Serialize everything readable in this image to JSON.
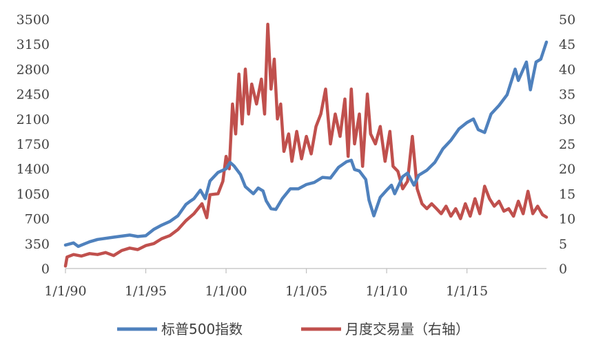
{
  "chart_data": {
    "type": "line",
    "title": "",
    "left_axis": {
      "min": 0,
      "max": 3500,
      "ticks": [
        0,
        350,
        700,
        1050,
        1400,
        1750,
        2100,
        2450,
        2800,
        3150,
        3500
      ]
    },
    "right_axis": {
      "min": 0,
      "max": 50,
      "ticks": [
        0,
        5,
        10,
        15,
        20,
        25,
        30,
        35,
        40,
        45,
        50
      ]
    },
    "x_axis": {
      "type": "date",
      "range": [
        "1/1/90",
        "12/1/19"
      ],
      "ticks": [
        {
          "label": "1/1/90",
          "year": 1990
        },
        {
          "label": "1/1/95",
          "year": 1995
        },
        {
          "label": "1/1/00",
          "year": 2000
        },
        {
          "label": "1/1/05",
          "year": 2005
        },
        {
          "label": "1/1/10",
          "year": 2010
        },
        {
          "label": "1/1/15",
          "year": 2015
        }
      ]
    },
    "grid": false,
    "legend_position": "bottom",
    "series": [
      {
        "name": "标普500指数",
        "axis": "left",
        "color": "#4f81bd",
        "points": [
          [
            1990.0,
            330
          ],
          [
            1990.5,
            360
          ],
          [
            1990.8,
            310
          ],
          [
            1991.0,
            330
          ],
          [
            1991.5,
            375
          ],
          [
            1992.0,
            408
          ],
          [
            1993.0,
            440
          ],
          [
            1994.0,
            470
          ],
          [
            1994.5,
            450
          ],
          [
            1995.0,
            460
          ],
          [
            1995.5,
            550
          ],
          [
            1996.0,
            610
          ],
          [
            1996.5,
            660
          ],
          [
            1997.0,
            740
          ],
          [
            1997.5,
            900
          ],
          [
            1997.8,
            950
          ],
          [
            1998.0,
            980
          ],
          [
            1998.4,
            1100
          ],
          [
            1998.7,
            980
          ],
          [
            1999.0,
            1230
          ],
          [
            1999.5,
            1350
          ],
          [
            2000.0,
            1400
          ],
          [
            2000.25,
            1490
          ],
          [
            2000.5,
            1440
          ],
          [
            2000.9,
            1320
          ],
          [
            2001.2,
            1150
          ],
          [
            2001.7,
            1050
          ],
          [
            2002.0,
            1130
          ],
          [
            2002.3,
            1090
          ],
          [
            2002.5,
            950
          ],
          [
            2002.8,
            840
          ],
          [
            2003.1,
            830
          ],
          [
            2003.5,
            980
          ],
          [
            2004.0,
            1120
          ],
          [
            2004.5,
            1120
          ],
          [
            2005.0,
            1180
          ],
          [
            2005.5,
            1210
          ],
          [
            2006.0,
            1280
          ],
          [
            2006.5,
            1270
          ],
          [
            2007.0,
            1420
          ],
          [
            2007.5,
            1500
          ],
          [
            2007.8,
            1520
          ],
          [
            2008.0,
            1390
          ],
          [
            2008.3,
            1370
          ],
          [
            2008.7,
            1250
          ],
          [
            2008.9,
            960
          ],
          [
            2009.2,
            740
          ],
          [
            2009.6,
            1000
          ],
          [
            2010.0,
            1100
          ],
          [
            2010.3,
            1170
          ],
          [
            2010.5,
            1050
          ],
          [
            2011.0,
            1290
          ],
          [
            2011.3,
            1340
          ],
          [
            2011.7,
            1170
          ],
          [
            2012.0,
            1310
          ],
          [
            2012.5,
            1380
          ],
          [
            2013.0,
            1490
          ],
          [
            2013.5,
            1680
          ],
          [
            2014.0,
            1800
          ],
          [
            2014.5,
            1960
          ],
          [
            2015.0,
            2050
          ],
          [
            2015.4,
            2100
          ],
          [
            2015.7,
            1950
          ],
          [
            2016.1,
            1910
          ],
          [
            2016.5,
            2170
          ],
          [
            2017.0,
            2290
          ],
          [
            2017.5,
            2440
          ],
          [
            2018.0,
            2800
          ],
          [
            2018.2,
            2640
          ],
          [
            2018.7,
            2900
          ],
          [
            2018.95,
            2510
          ],
          [
            2019.3,
            2900
          ],
          [
            2019.6,
            2940
          ],
          [
            2019.95,
            3180
          ]
        ]
      },
      {
        "name": "月度交易量（右轴）",
        "axis": "right",
        "color": "#c0504d",
        "points": [
          [
            1990.0,
            0.5
          ],
          [
            1990.1,
            2.3
          ],
          [
            1990.5,
            2.8
          ],
          [
            1991.0,
            2.5
          ],
          [
            1991.5,
            3.0
          ],
          [
            1992.0,
            2.8
          ],
          [
            1992.5,
            3.2
          ],
          [
            1993.0,
            2.6
          ],
          [
            1993.5,
            3.6
          ],
          [
            1994.0,
            4.1
          ],
          [
            1994.5,
            3.8
          ],
          [
            1995.0,
            4.6
          ],
          [
            1995.5,
            5.0
          ],
          [
            1996.0,
            6.0
          ],
          [
            1996.5,
            6.6
          ],
          [
            1997.0,
            7.8
          ],
          [
            1997.5,
            9.6
          ],
          [
            1998.0,
            11.0
          ],
          [
            1998.5,
            13.0
          ],
          [
            1998.8,
            10.2
          ],
          [
            1999.0,
            14.8
          ],
          [
            1999.5,
            15.0
          ],
          [
            1999.8,
            17.5
          ],
          [
            2000.0,
            22.5
          ],
          [
            2000.2,
            20.0
          ],
          [
            2000.4,
            33.0
          ],
          [
            2000.6,
            27.0
          ],
          [
            2000.8,
            39.0
          ],
          [
            2001.0,
            29.0
          ],
          [
            2001.2,
            40.0
          ],
          [
            2001.4,
            31.0
          ],
          [
            2001.6,
            37.0
          ],
          [
            2001.9,
            33.0
          ],
          [
            2002.2,
            38.0
          ],
          [
            2002.4,
            31.0
          ],
          [
            2002.6,
            49.0
          ],
          [
            2002.8,
            36.0
          ],
          [
            2003.0,
            42.0
          ],
          [
            2003.2,
            30.0
          ],
          [
            2003.4,
            33.0
          ],
          [
            2003.6,
            23.5
          ],
          [
            2003.9,
            27.0
          ],
          [
            2004.1,
            21.5
          ],
          [
            2004.4,
            27.5
          ],
          [
            2004.7,
            22.0
          ],
          [
            2005.0,
            26.5
          ],
          [
            2005.3,
            23.0
          ],
          [
            2005.6,
            28.5
          ],
          [
            2005.9,
            31.0
          ],
          [
            2006.2,
            36.0
          ],
          [
            2006.5,
            25.0
          ],
          [
            2006.8,
            31.0
          ],
          [
            2007.1,
            26.5
          ],
          [
            2007.4,
            34.0
          ],
          [
            2007.6,
            22.5
          ],
          [
            2007.8,
            36.0
          ],
          [
            2008.0,
            25.0
          ],
          [
            2008.3,
            31.0
          ],
          [
            2008.5,
            20.5
          ],
          [
            2008.8,
            35.0
          ],
          [
            2009.0,
            27.0
          ],
          [
            2009.3,
            25.0
          ],
          [
            2009.6,
            28.5
          ],
          [
            2009.9,
            21.5
          ],
          [
            2010.2,
            27.5
          ],
          [
            2010.4,
            20.5
          ],
          [
            2010.7,
            19.5
          ],
          [
            2011.0,
            16.0
          ],
          [
            2011.3,
            17.5
          ],
          [
            2011.6,
            26.5
          ],
          [
            2011.9,
            16.0
          ],
          [
            2012.2,
            13.0
          ],
          [
            2012.5,
            12.0
          ],
          [
            2012.8,
            13.0
          ],
          [
            2013.1,
            12.0
          ],
          [
            2013.4,
            11.0
          ],
          [
            2013.7,
            12.5
          ],
          [
            2014.0,
            10.5
          ],
          [
            2014.3,
            12.0
          ],
          [
            2014.6,
            10.0
          ],
          [
            2014.9,
            13.0
          ],
          [
            2015.2,
            10.5
          ],
          [
            2015.5,
            14.0
          ],
          [
            2015.8,
            11.0
          ],
          [
            2016.1,
            16.5
          ],
          [
            2016.4,
            14.0
          ],
          [
            2016.7,
            12.5
          ],
          [
            2017.0,
            13.5
          ],
          [
            2017.3,
            11.5
          ],
          [
            2017.6,
            12.0
          ],
          [
            2017.9,
            10.5
          ],
          [
            2018.2,
            13.5
          ],
          [
            2018.5,
            11.0
          ],
          [
            2018.8,
            15.5
          ],
          [
            2019.1,
            11.0
          ],
          [
            2019.4,
            12.5
          ],
          [
            2019.7,
            10.8
          ],
          [
            2019.95,
            10.3
          ]
        ]
      }
    ]
  }
}
